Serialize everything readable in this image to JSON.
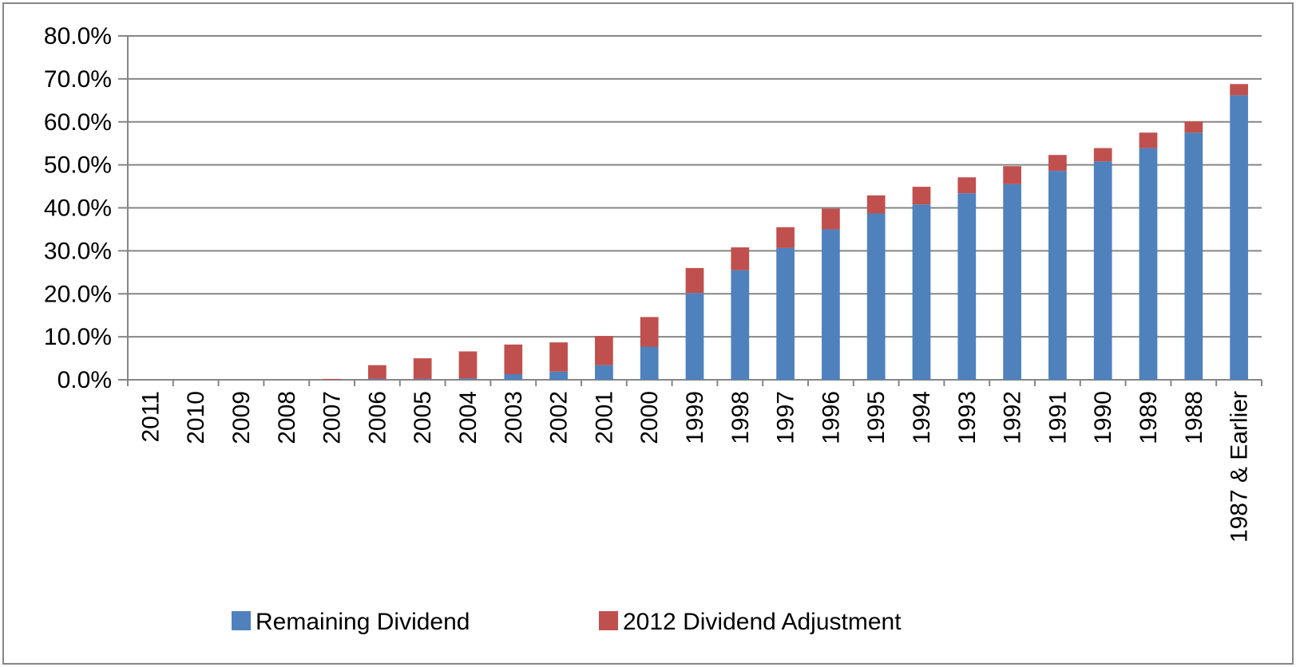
{
  "chart_data": {
    "type": "stacked_bar",
    "categories": [
      "2011",
      "2010",
      "2009",
      "2008",
      "2007",
      "2006",
      "2005",
      "2004",
      "2003",
      "2002",
      "2001",
      "2000",
      "1999",
      "1998",
      "1997",
      "1996",
      "1995",
      "1994",
      "1993",
      "1992",
      "1991",
      "1990",
      "1989",
      "1988",
      "1987 & Earlier"
    ],
    "series": [
      {
        "name": "Remaining Dividend",
        "color": "#4f81bd",
        "values": [
          0,
          0,
          0,
          0,
          0,
          0.2,
          0.2,
          0.3,
          1.3,
          1.9,
          3.4,
          7.7,
          20.2,
          25.5,
          30.7,
          35.0,
          38.7,
          40.8,
          43.4,
          45.5,
          48.6,
          50.8,
          53.9,
          57.5,
          66.2
        ]
      },
      {
        "name": "2012 Dividend Adjustment",
        "color": "#c0504d",
        "values": [
          0,
          0,
          0,
          0,
          0.2,
          3.2,
          4.8,
          6.3,
          6.9,
          6.8,
          6.8,
          6.9,
          5.8,
          5.3,
          4.8,
          4.8,
          4.2,
          4.1,
          3.7,
          4.2,
          3.7,
          3.1,
          3.6,
          2.6,
          2.6
        ]
      }
    ],
    "ylim": [
      0,
      80
    ],
    "yticks": [
      {
        "value": 0,
        "label": "0.0%"
      },
      {
        "value": 10,
        "label": "10.0%"
      },
      {
        "value": 20,
        "label": "20.0%"
      },
      {
        "value": 30,
        "label": "30.0%"
      },
      {
        "value": 40,
        "label": "40.0%"
      },
      {
        "value": 50,
        "label": "50.0%"
      },
      {
        "value": 60,
        "label": "60.0%"
      },
      {
        "value": 70,
        "label": "70.0%"
      },
      {
        "value": 80,
        "label": "80.0%"
      }
    ],
    "grid": true
  }
}
